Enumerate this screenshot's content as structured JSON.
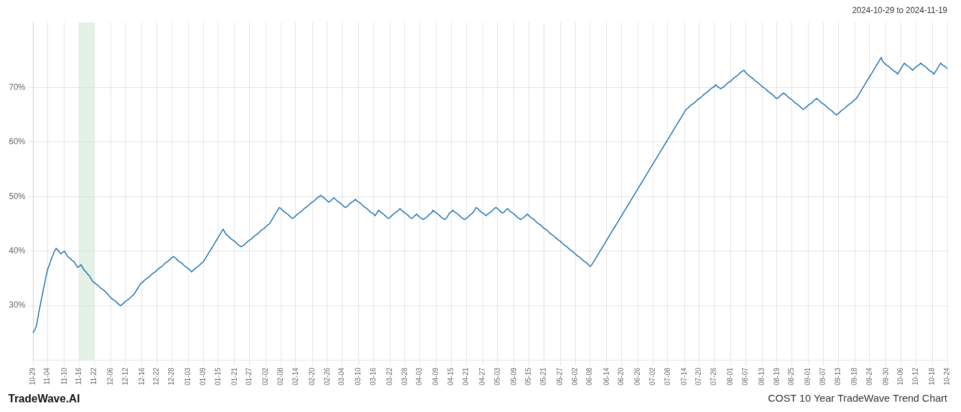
{
  "chart_data": {
    "type": "line",
    "title": "COST 10 Year TradeWave Trend Chart",
    "subtitle": "2024-10-29 to 2024-11-19",
    "annotations": [
      "TradeWave.AI"
    ],
    "color": "#1a6faf",
    "grid": true,
    "ylim": [
      20,
      82
    ],
    "yticks": [
      {
        "value": 30,
        "label": "30%"
      },
      {
        "value": 40,
        "label": "40%"
      },
      {
        "value": 50,
        "label": "50%"
      },
      {
        "value": 60,
        "label": "60%"
      },
      {
        "value": 70,
        "label": "70%"
      }
    ],
    "bands": [
      {
        "start": "11-16",
        "end": "11-22",
        "color": "#c8e6c9"
      }
    ],
    "categories": [
      "10-29",
      null,
      null,
      null,
      null,
      null,
      null,
      null,
      null,
      "11-04",
      null,
      null,
      null,
      null,
      null,
      null,
      null,
      null,
      null,
      "11-10",
      null,
      null,
      null,
      null,
      null,
      null,
      null,
      null,
      "11-16",
      null,
      null,
      null,
      null,
      null,
      null,
      null,
      null,
      "11-22",
      null,
      null,
      null,
      null,
      null,
      null,
      null,
      null,
      null,
      "12-06",
      null,
      null,
      null,
      null,
      null,
      null,
      null,
      null,
      "12-12",
      null,
      null,
      null,
      null,
      null,
      null,
      null,
      null,
      null,
      "12-16",
      null,
      null,
      null,
      null,
      null,
      null,
      null,
      null,
      "12-22",
      null,
      null,
      null,
      null,
      null,
      null,
      null,
      null,
      "12-28",
      null,
      null,
      null,
      null,
      null,
      null,
      null,
      null,
      null,
      "01-03",
      null,
      null,
      null,
      null,
      null,
      null,
      null,
      null,
      "01-09",
      null,
      null,
      null,
      null,
      null,
      null,
      null,
      null,
      "01-15",
      null,
      null,
      null,
      null,
      null,
      null,
      null,
      null,
      null,
      "01-21",
      null,
      null,
      null,
      null,
      null,
      null,
      null,
      null,
      "01-27",
      null,
      null,
      null,
      null,
      null,
      null,
      null,
      null,
      null,
      "02-02",
      null,
      null,
      null,
      null,
      null,
      null,
      null,
      null,
      "02-08",
      null,
      null,
      null,
      null,
      null,
      null,
      null,
      null,
      "02-14",
      null,
      null,
      null,
      null,
      null,
      null,
      null,
      null,
      null,
      "02-20",
      null,
      null,
      null,
      null,
      null,
      null,
      null,
      null,
      "02-26",
      null,
      null,
      null,
      null,
      null,
      null,
      null,
      null,
      "03-04",
      null,
      null,
      null,
      null,
      null,
      null,
      null,
      null,
      null,
      "03-10",
      null,
      null,
      null,
      null,
      null,
      null,
      null,
      null,
      "03-16",
      null,
      null,
      null,
      null,
      null,
      null,
      null,
      null,
      null,
      "03-22",
      null,
      null,
      null,
      null,
      null,
      null,
      null,
      null,
      "03-28",
      null,
      null,
      null,
      null,
      null,
      null,
      null,
      null,
      "04-03",
      null,
      null,
      null,
      null,
      null,
      null,
      null,
      null,
      null,
      "04-09",
      null,
      null,
      null,
      null,
      null,
      null,
      null,
      null,
      "04-15",
      null,
      null,
      null,
      null,
      null,
      null,
      null,
      null,
      "04-21",
      null,
      null,
      null,
      null,
      null,
      null,
      null,
      null,
      null,
      "04-27",
      null,
      null,
      null,
      null,
      null,
      null,
      null,
      null,
      "05-03",
      null,
      null,
      null,
      null,
      null,
      null,
      null,
      null,
      null,
      "05-09",
      null,
      null,
      null,
      null,
      null,
      null,
      null,
      null,
      "05-15",
      null,
      null,
      null,
      null,
      null,
      null,
      null,
      null,
      "05-21",
      null,
      null,
      null,
      null,
      null,
      null,
      null,
      null,
      null,
      "05-27",
      null,
      null,
      null,
      null,
      null,
      null,
      null,
      null,
      "06-02",
      null,
      null,
      null,
      null,
      null,
      null,
      null,
      null,
      "06-08",
      null,
      null,
      null,
      null,
      null,
      null,
      null,
      null,
      null,
      "06-14",
      null,
      null,
      null,
      null,
      null,
      null,
      null,
      null,
      "06-20",
      null,
      null,
      null,
      null,
      null,
      null,
      null,
      null,
      null,
      "06-26",
      null,
      null,
      null,
      null,
      null,
      null,
      null,
      null,
      "07-02",
      null,
      null,
      null,
      null,
      null,
      null,
      null,
      null,
      "07-08",
      null,
      null,
      null,
      null,
      null,
      null,
      null,
      null,
      null,
      "07-14",
      null,
      null,
      null,
      null,
      null,
      null,
      null,
      null,
      "07-20",
      null,
      null,
      null,
      null,
      null,
      null,
      null,
      null,
      "07-26",
      null,
      null,
      null,
      null,
      null,
      null,
      null,
      null,
      null,
      "08-01",
      null,
      null,
      null,
      null,
      null,
      null,
      null,
      null,
      "08-07",
      null,
      null,
      null,
      null,
      null,
      null,
      null,
      null,
      null,
      "08-13",
      null,
      null,
      null,
      null,
      null,
      null,
      null,
      null,
      "08-19",
      null,
      null,
      null,
      null,
      null,
      null,
      null,
      null,
      "08-25",
      null,
      null,
      null,
      null,
      null,
      null,
      null,
      null,
      null,
      "09-01",
      null,
      null,
      null,
      null,
      null,
      null,
      null,
      null,
      "09-07",
      null,
      null,
      null,
      null,
      null,
      null,
      null,
      null,
      "09-13",
      null,
      null,
      null,
      null,
      null,
      null,
      null,
      null,
      null,
      "09-18",
      null,
      null,
      null,
      null,
      null,
      null,
      null,
      null,
      "09-24",
      null,
      null,
      null,
      null,
      null,
      null,
      null,
      null,
      null,
      "09-30",
      null,
      null,
      null,
      null,
      null,
      null,
      null,
      null,
      "10-06",
      null,
      null,
      null,
      null,
      null,
      null,
      null,
      null,
      "10-12",
      null,
      null,
      null,
      null,
      null,
      null,
      null,
      null,
      null,
      "10-18",
      null,
      null,
      null,
      null,
      null,
      null,
      null,
      null,
      "10-24"
    ],
    "values": [
      25.0,
      25.5,
      26.2,
      27.8,
      29.5,
      31.0,
      32.5,
      34.0,
      35.5,
      36.8,
      37.5,
      38.5,
      39.2,
      40.0,
      40.5,
      40.2,
      39.8,
      39.5,
      39.8,
      40.0,
      39.5,
      39.0,
      38.8,
      38.5,
      38.2,
      38.0,
      37.5,
      37.0,
      37.2,
      37.5,
      37.0,
      36.5,
      36.2,
      35.8,
      35.5,
      35.0,
      34.5,
      34.2,
      34.0,
      33.8,
      33.5,
      33.2,
      33.0,
      32.8,
      32.5,
      32.2,
      31.8,
      31.5,
      31.2,
      31.0,
      30.8,
      30.5,
      30.2,
      30.0,
      30.2,
      30.5,
      30.8,
      31.0,
      31.2,
      31.5,
      31.8,
      32.0,
      32.5,
      33.0,
      33.5,
      34.0,
      34.2,
      34.5,
      34.8,
      35.0,
      35.2,
      35.5,
      35.8,
      36.0,
      36.2,
      36.5,
      36.8,
      37.0,
      37.2,
      37.5,
      37.8,
      38.0,
      38.2,
      38.5,
      38.8,
      39.0,
      38.8,
      38.5,
      38.2,
      38.0,
      37.8,
      37.5,
      37.2,
      37.0,
      36.8,
      36.5,
      36.2,
      36.5,
      36.8,
      37.0,
      37.2,
      37.5,
      37.8,
      38.0,
      38.5,
      39.0,
      39.5,
      40.0,
      40.5,
      41.0,
      41.5,
      42.0,
      42.5,
      43.0,
      43.5,
      44.0,
      43.5,
      43.0,
      42.8,
      42.5,
      42.2,
      42.0,
      41.8,
      41.5,
      41.2,
      41.0,
      40.8,
      41.0,
      41.2,
      41.5,
      41.8,
      42.0,
      42.2,
      42.5,
      42.8,
      43.0,
      43.2,
      43.5,
      43.8,
      44.0,
      44.2,
      44.5,
      44.8,
      45.0,
      45.5,
      46.0,
      46.5,
      47.0,
      47.5,
      48.0,
      47.8,
      47.5,
      47.2,
      47.0,
      46.8,
      46.5,
      46.2,
      46.0,
      46.2,
      46.5,
      46.8,
      47.0,
      47.2,
      47.5,
      47.8,
      48.0,
      48.2,
      48.5,
      48.8,
      49.0,
      49.2,
      49.5,
      49.8,
      50.0,
      50.2,
      50.0,
      49.8,
      49.5,
      49.2,
      49.0,
      49.2,
      49.5,
      49.8,
      49.5,
      49.2,
      49.0,
      48.8,
      48.5,
      48.2,
      48.0,
      48.2,
      48.5,
      48.8,
      49.0,
      49.2,
      49.5,
      49.2,
      49.0,
      48.8,
      48.5,
      48.2,
      48.0,
      47.8,
      47.5,
      47.2,
      47.0,
      46.8,
      46.5,
      47.0,
      47.5,
      47.2,
      47.0,
      46.8,
      46.5,
      46.2,
      46.0,
      46.2,
      46.5,
      46.8,
      47.0,
      47.2,
      47.5,
      47.8,
      47.5,
      47.2,
      47.0,
      46.8,
      46.5,
      46.2,
      46.0,
      46.2,
      46.5,
      46.8,
      46.5,
      46.2,
      46.0,
      45.8,
      46.0,
      46.2,
      46.5,
      46.8,
      47.0,
      47.5,
      47.2,
      47.0,
      46.8,
      46.5,
      46.2,
      46.0,
      45.8,
      46.0,
      46.5,
      47.0,
      47.2,
      47.5,
      47.2,
      47.0,
      46.8,
      46.5,
      46.2,
      46.0,
      45.8,
      46.0,
      46.2,
      46.5,
      46.8,
      47.0,
      47.5,
      48.0,
      47.8,
      47.5,
      47.2,
      47.0,
      46.8,
      46.5,
      46.8,
      47.0,
      47.2,
      47.5,
      47.8,
      48.0,
      47.8,
      47.5,
      47.2,
      47.0,
      47.2,
      47.5,
      47.8,
      47.5,
      47.2,
      47.0,
      46.8,
      46.5,
      46.2,
      46.0,
      45.8,
      46.0,
      46.2,
      46.5,
      46.8,
      46.5,
      46.2,
      46.0,
      45.8,
      45.5,
      45.2,
      45.0,
      44.8,
      44.5,
      44.2,
      44.0,
      43.8,
      43.5,
      43.2,
      43.0,
      42.8,
      42.5,
      42.2,
      42.0,
      41.8,
      41.5,
      41.2,
      41.0,
      40.8,
      40.5,
      40.2,
      40.0,
      39.8,
      39.5,
      39.2,
      39.0,
      38.8,
      38.5,
      38.2,
      38.0,
      37.8,
      37.5,
      37.2,
      37.5,
      38.0,
      38.5,
      39.0,
      39.5,
      40.0,
      40.5,
      41.0,
      41.5,
      42.0,
      42.5,
      43.0,
      43.5,
      44.0,
      44.5,
      45.0,
      45.5,
      46.0,
      46.5,
      47.0,
      47.5,
      48.0,
      48.5,
      49.0,
      49.5,
      50.0,
      50.5,
      51.0,
      51.5,
      52.0,
      52.5,
      53.0,
      53.5,
      54.0,
      54.5,
      55.0,
      55.5,
      56.0,
      56.5,
      57.0,
      57.5,
      58.0,
      58.5,
      59.0,
      59.5,
      60.0,
      60.5,
      61.0,
      61.5,
      62.0,
      62.5,
      63.0,
      63.5,
      64.0,
      64.5,
      65.0,
      65.5,
      66.0,
      66.2,
      66.5,
      66.8,
      67.0,
      67.2,
      67.5,
      67.8,
      68.0,
      68.2,
      68.5,
      68.8,
      69.0,
      69.2,
      69.5,
      69.8,
      70.0,
      70.2,
      70.5,
      70.2,
      70.0,
      69.8,
      70.0,
      70.2,
      70.5,
      70.8,
      71.0,
      71.2,
      71.5,
      71.8,
      72.0,
      72.2,
      72.5,
      72.8,
      73.0,
      73.2,
      72.8,
      72.5,
      72.2,
      72.0,
      71.8,
      71.5,
      71.2,
      71.0,
      70.8,
      70.5,
      70.2,
      70.0,
      69.8,
      69.5,
      69.2,
      69.0,
      68.8,
      68.5,
      68.2,
      68.0,
      68.2,
      68.5,
      68.8,
      69.0,
      68.8,
      68.5,
      68.2,
      68.0,
      67.8,
      67.5,
      67.2,
      67.0,
      66.8,
      66.5,
      66.2,
      66.0,
      66.2,
      66.5,
      66.8,
      67.0,
      67.2,
      67.5,
      67.8,
      68.0,
      67.8,
      67.5,
      67.2,
      67.0,
      66.8,
      66.5,
      66.2,
      66.0,
      65.8,
      65.5,
      65.2,
      65.0,
      65.2,
      65.5,
      65.8,
      66.0,
      66.2,
      66.5,
      66.8,
      67.0,
      67.2,
      67.5,
      67.8,
      68.0,
      68.5,
      69.0,
      69.5,
      70.0,
      70.5,
      71.0,
      71.5,
      72.0,
      72.5,
      73.0,
      73.5,
      74.0,
      74.5,
      75.0,
      75.5,
      74.8,
      74.5,
      74.2,
      74.0,
      73.8,
      73.5,
      73.2,
      73.0,
      72.8,
      72.5,
      73.0,
      73.5,
      74.0,
      74.5,
      74.2,
      74.0,
      73.8,
      73.5,
      73.2,
      73.5,
      73.8,
      74.0,
      74.2,
      74.5,
      74.2,
      74.0,
      73.8,
      73.5,
      73.2,
      73.0,
      72.8,
      72.5,
      73.0,
      73.5,
      74.0,
      74.5,
      74.2,
      74.0,
      73.8,
      73.5
    ]
  }
}
